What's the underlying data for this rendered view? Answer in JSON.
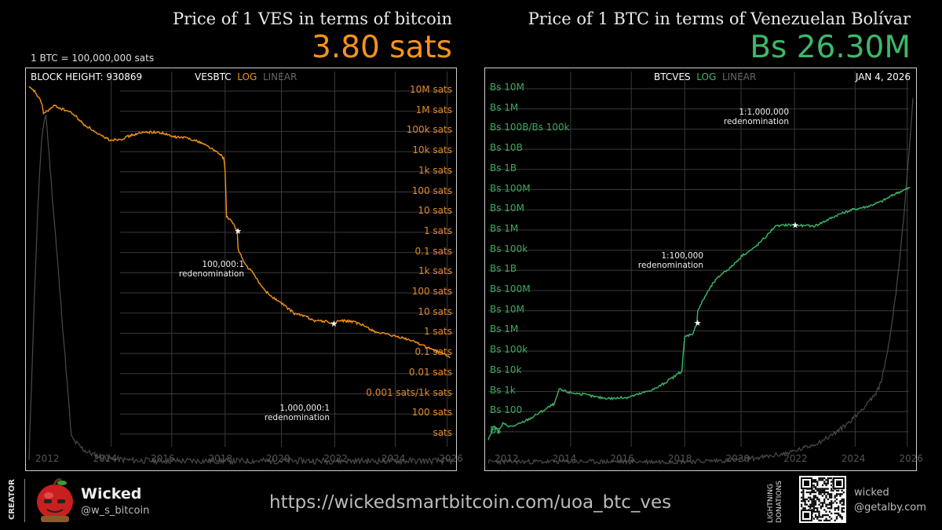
{
  "left": {
    "title": "Price of 1 VES in terms of bitcoin",
    "value": "3.80 sats",
    "note": "1 BTC = 100,000,000 sats",
    "block_height": "BLOCK HEIGHT: 930869",
    "ticker": "VESBTC",
    "scale_log": "LOG",
    "scale_linear": "LINEAR",
    "annot1": [
      "100,000:1",
      "redenomination"
    ],
    "annot2": [
      "1,000,000:1",
      "redenomination"
    ]
  },
  "right": {
    "title": "Price of 1 BTC in terms of Venezuelan Bolívar",
    "value": "Bs 26.30M",
    "date": "JAN 4, 2026",
    "ticker": "BTCVES",
    "scale_log": "LOG",
    "scale_linear": "LINEAR",
    "annot1": [
      "1:1,000,000",
      "redenomination"
    ],
    "annot2": [
      "1:100,000",
      "redenomination"
    ]
  },
  "footer": {
    "creator_label": "CREATOR",
    "creator_name": "Wicked",
    "creator_handle": "@w_s_bitcoin",
    "url": "https://wickedsmartbitcoin.com/uoa_btc_ves",
    "donation_label_1": "LIGHTNING",
    "donation_label_2": "DONATIONS",
    "donation_name": "wicked",
    "donation_address": "@getalby.com"
  },
  "colors": {
    "orange": "#f7931a",
    "green": "#3cb96a",
    "grid": "#444444",
    "background": "#000000"
  },
  "chart_data": [
    {
      "type": "line",
      "title": "Price of 1 VES in terms of bitcoin",
      "series": [
        {
          "values": [
            [
              2011.4,
              4.5
            ],
            [
              2011.6,
              4.3
            ],
            [
              2011.85,
              3.7
            ],
            [
              2011.9,
              3.2
            ],
            [
              2012.1,
              3.4
            ],
            [
              2012.3,
              3.6
            ],
            [
              2012.5,
              3.45
            ],
            [
              2012.8,
              3.3
            ],
            [
              2013.0,
              3.1
            ],
            [
              2013.3,
              2.65
            ],
            [
              2013.5,
              2.5
            ],
            [
              2013.8,
              2.15
            ],
            [
              2014.0,
              2.05
            ],
            [
              2014.2,
              1.9
            ],
            [
              2014.6,
              1.95
            ],
            [
              2015.0,
              2.15
            ],
            [
              2015.5,
              2.3
            ],
            [
              2016.0,
              2.25
            ],
            [
              2016.4,
              2.05
            ],
            [
              2016.9,
              2.0
            ],
            [
              2017.4,
              1.75
            ],
            [
              2017.7,
              1.5
            ],
            [
              2018.0,
              1.2
            ],
            [
              2018.15,
              1.0
            ],
            [
              2018.2,
              0.35
            ],
            [
              2018.25,
              -1.9
            ],
            [
              2018.4,
              -2.1
            ],
            [
              2018.62,
              -2.6
            ],
            [
              2018.65,
              -3.5
            ],
            [
              2018.9,
              -4.3
            ],
            [
              2019.2,
              -4.75
            ],
            [
              2019.5,
              -5.45
            ],
            [
              2019.8,
              -5.85
            ],
            [
              2020.2,
              -6.25
            ],
            [
              2020.6,
              -6.7
            ],
            [
              2021.0,
              -6.85
            ],
            [
              2021.3,
              -7.05
            ],
            [
              2021.7,
              -7.1
            ],
            [
              2021.95,
              -7.2
            ],
            [
              2022.2,
              -7.05
            ],
            [
              2022.6,
              -7.1
            ],
            [
              2023.0,
              -7.3
            ],
            [
              2023.4,
              -7.6
            ],
            [
              2023.8,
              -7.75
            ],
            [
              2024.3,
              -7.9
            ],
            [
              2024.8,
              -8.1
            ],
            [
              2025.3,
              -8.45
            ],
            [
              2025.8,
              -8.7
            ],
            [
              2026.0,
              -8.9
            ]
          ]
        }
      ],
      "x_ticks": [
        "2012",
        "2014",
        "2016",
        "2018",
        "2020",
        "2022",
        "2024",
        "2026"
      ],
      "y_ticks": [
        "10M sats",
        "1M sats",
        "100k sats",
        "10k sats",
        "1k sats",
        "100 sats",
        "10 sats",
        "1 sats",
        "0.1 sats",
        "1k sats",
        "100 sats",
        "10 sats",
        "1 sats",
        "0.1 sats",
        "0.01 sats",
        "0.001 sats/1k sats",
        "100 sats",
        "sats"
      ],
      "y_scale": "log",
      "grid": true
    },
    {
      "type": "line",
      "title": "Price of 1 BTC in terms of Venezuelan Bolívar",
      "series": [
        {
          "values": [
            [
              2011.4,
              -0.2
            ],
            [
              2011.6,
              0.5
            ],
            [
              2011.75,
              0.2
            ],
            [
              2011.9,
              0.6
            ],
            [
              2012.2,
              0.45
            ],
            [
              2012.5,
              0.6
            ],
            [
              2012.9,
              0.9
            ],
            [
              2013.3,
              1.25
            ],
            [
              2013.7,
              1.6
            ],
            [
              2013.85,
              2.3
            ],
            [
              2014.2,
              2.15
            ],
            [
              2014.7,
              2.05
            ],
            [
              2015.2,
              1.9
            ],
            [
              2015.7,
              1.85
            ],
            [
              2016.2,
              1.9
            ],
            [
              2016.7,
              2.1
            ],
            [
              2017.2,
              2.35
            ],
            [
              2017.6,
              2.7
            ],
            [
              2017.9,
              3.0
            ],
            [
              2018.1,
              3.2
            ],
            [
              2018.2,
              4.9
            ],
            [
              2018.5,
              5.1
            ],
            [
              2018.62,
              5.6
            ],
            [
              2018.65,
              6.2
            ],
            [
              2018.9,
              6.9
            ],
            [
              2019.2,
              7.6
            ],
            [
              2019.5,
              8.05
            ],
            [
              2019.8,
              8.35
            ],
            [
              2020.2,
              8.95
            ],
            [
              2020.6,
              9.3
            ],
            [
              2021.0,
              9.85
            ],
            [
              2021.3,
              10.35
            ],
            [
              2021.7,
              10.45
            ],
            [
              2022.0,
              10.45
            ],
            [
              2022.3,
              10.4
            ],
            [
              2022.7,
              10.4
            ],
            [
              2023.0,
              10.6
            ],
            [
              2023.5,
              10.95
            ],
            [
              2024.0,
              11.2
            ],
            [
              2024.5,
              11.35
            ],
            [
              2025.0,
              11.6
            ],
            [
              2025.5,
              12.0
            ],
            [
              2026.0,
              12.3
            ]
          ]
        }
      ],
      "x_ticks": [
        "2012",
        "2014",
        "2016",
        "2018",
        "2020",
        "2022",
        "2024",
        "2026"
      ],
      "y_ticks": [
        "Bs 10M",
        "Bs 1M",
        "Bs 100B/Bs 100k",
        "Bs 10B",
        "Bs 1B",
        "Bs 100M",
        "Bs 10M",
        "Bs 1M",
        "Bs 100k",
        "Bs 1B",
        "Bs 100M",
        "Bs 10M",
        "Bs 1M",
        "Bs 100k",
        "Bs 10k",
        "Bs 1k",
        "Bs 100",
        "Bs"
      ],
      "y_scale": "log",
      "grid": true
    }
  ]
}
